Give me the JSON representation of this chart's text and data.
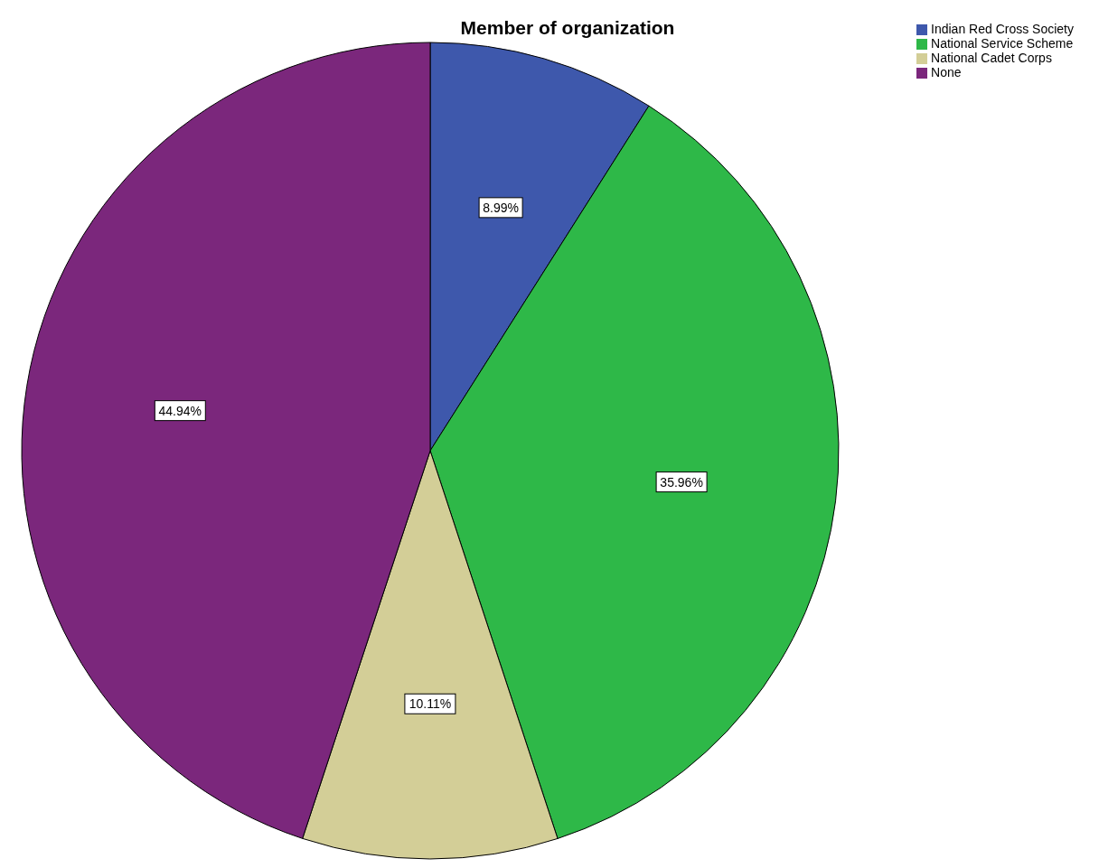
{
  "chart_data": {
    "type": "pie",
    "title": "Member of organization",
    "categories": [
      "Indian Red Cross Society",
      "National Service Scheme",
      "National Cadet Corps",
      "None"
    ],
    "values": [
      8.99,
      35.96,
      10.11,
      44.94
    ],
    "value_labels": [
      "8.99%",
      "35.96%",
      "10.11%",
      "44.94%"
    ],
    "colors": [
      "#3e58ac",
      "#2eb848",
      "#d3ce97",
      "#7b277c"
    ],
    "legend": "top right"
  }
}
